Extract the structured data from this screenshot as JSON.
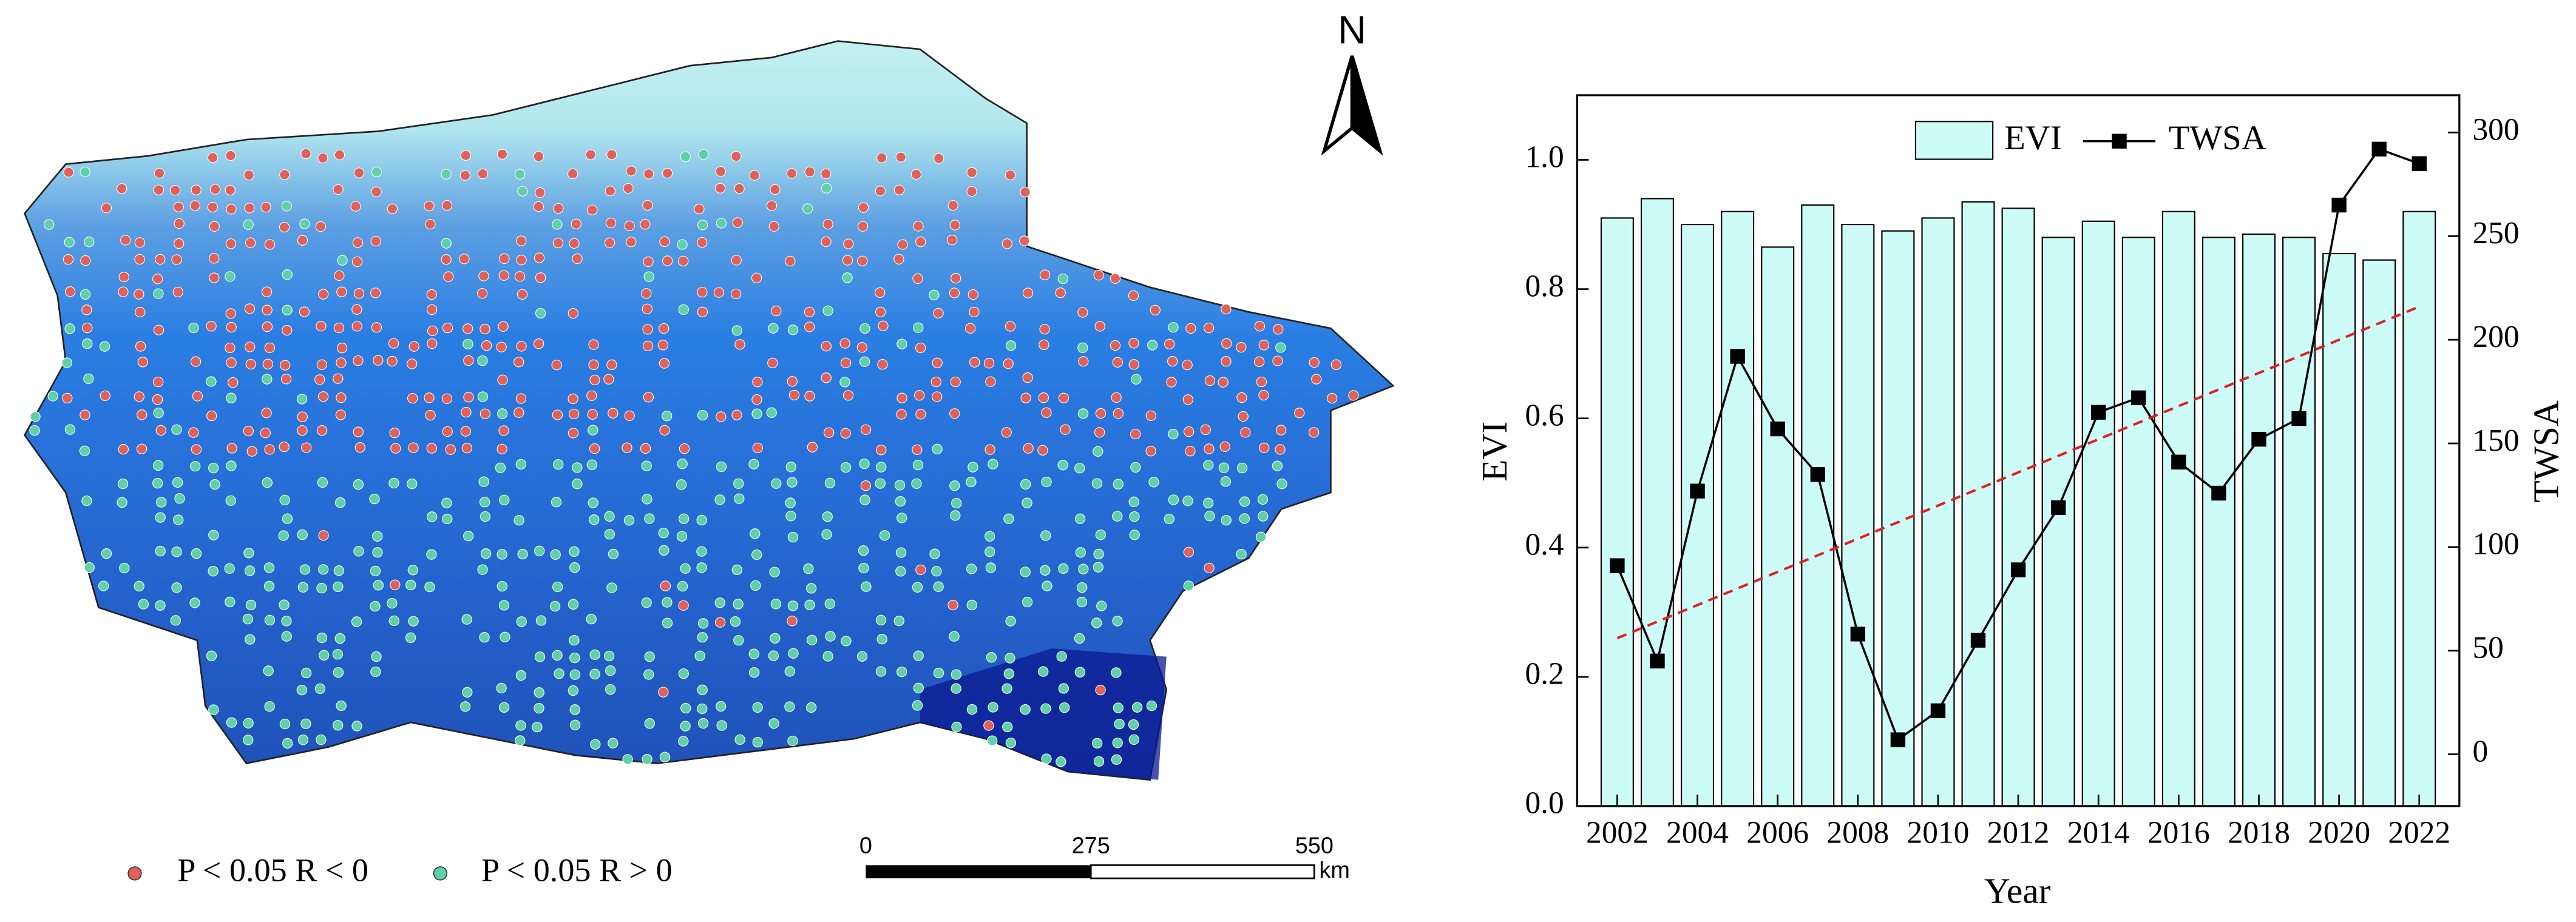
{
  "map": {
    "north": "N",
    "legend": [
      "P < 0.05 R < 0",
      "P < 0.05 R > 0"
    ],
    "scale_labels": [
      "0",
      "275",
      "550"
    ],
    "scale_unit": "km"
  },
  "chart_data": {
    "type": "bar",
    "x_label": "Year",
    "y_label": "EVI",
    "y2_label": "TWSA",
    "x": [
      2002,
      2003,
      2004,
      2005,
      2006,
      2007,
      2008,
      2009,
      2010,
      2011,
      2012,
      2013,
      2014,
      2015,
      2016,
      2017,
      2018,
      2019,
      2020,
      2021,
      2022
    ],
    "series": [
      {
        "name": "EVI",
        "color": "#ccfbf8",
        "values": [
          0.91,
          0.94,
          0.9,
          0.92,
          0.865,
          0.93,
          0.9,
          0.89,
          0.91,
          0.935,
          0.925,
          0.88,
          0.905,
          0.88,
          0.92,
          0.88,
          0.885,
          0.88,
          0.855,
          0.845,
          0.92
        ]
      },
      {
        "name": "TWSA",
        "axis": "y2",
        "color": "#000000",
        "values": [
          91,
          45,
          127,
          192,
          157,
          135,
          58,
          7,
          21,
          55,
          89,
          119,
          165,
          172,
          141,
          126,
          152,
          162,
          265,
          292,
          285
        ]
      }
    ],
    "trend": {
      "axis": "y2",
      "color": "#e02020",
      "x": [
        2002,
        2022
      ],
      "values": [
        56,
        216
      ]
    },
    "xlim": [
      2001,
      2023
    ],
    "xticks": [
      2002,
      2004,
      2006,
      2008,
      2010,
      2012,
      2014,
      2016,
      2018,
      2020,
      2022
    ],
    "ylim": [
      0,
      1.1
    ],
    "yticks": [
      {
        "value": 0,
        "label": "0.0"
      },
      {
        "value": 0.2,
        "label": "0.2"
      },
      {
        "value": 0.4,
        "label": "0.4"
      },
      {
        "value": 0.6,
        "label": "0.6"
      },
      {
        "value": 0.8,
        "label": "0.8"
      },
      {
        "value": 1,
        "label": "1.0"
      }
    ],
    "y2lim": [
      -25,
      318
    ],
    "y2ticks": [
      0,
      50,
      100,
      150,
      200,
      250,
      300
    ]
  }
}
